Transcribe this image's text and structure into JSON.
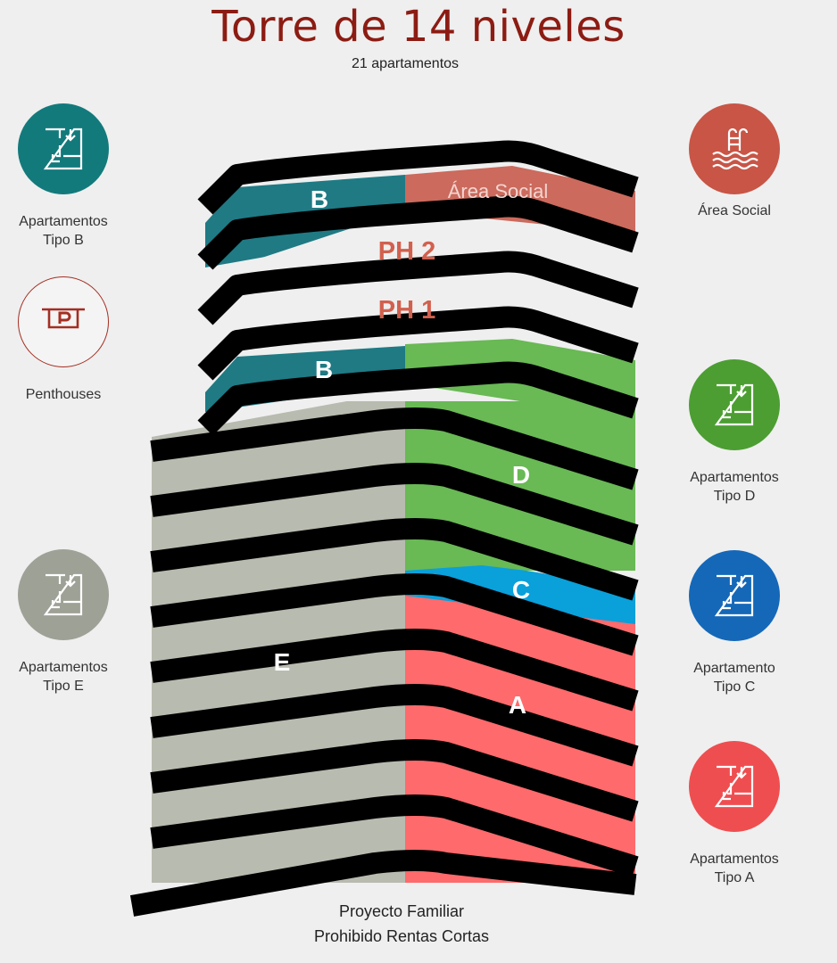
{
  "header": {
    "title": "Torre de 14 niveles",
    "subtitle": "21 apartamentos"
  },
  "legend": {
    "tipo_b": {
      "line1": "Apartamentos",
      "line2": "Tipo B",
      "color": "#137a7c",
      "icon": "floorplan-icon"
    },
    "penthouses": {
      "line1": "Penthouses",
      "color": "#a42e22",
      "icon": "parking-sign-icon"
    },
    "tipo_e": {
      "line1": "Apartamentos",
      "line2": "Tipo E",
      "color": "#9ea196",
      "icon": "floorplan-icon"
    },
    "area_social": {
      "line1": "Área Social",
      "color": "#c85546",
      "icon": "pool-icon"
    },
    "tipo_d": {
      "line1": "Apartamentos",
      "line2": "Tipo D",
      "color": "#4c9e32",
      "icon": "floorplan-icon"
    },
    "tipo_c": {
      "line1": "Apartamento",
      "line2": "Tipo C",
      "color": "#1568b8",
      "icon": "floorplan-icon"
    },
    "tipo_a": {
      "line1": "Apartamentos",
      "line2": "Tipo A",
      "color": "#ef4e50",
      "icon": "floorplan-icon"
    }
  },
  "tower": {
    "colors": {
      "b": "#1f7a84",
      "area_social": "#cb6a5d",
      "ph": "#efefef",
      "e": "#b8bbaf",
      "d": "#69b955",
      "c": "#0aa0da",
      "a": "#ff6a6c",
      "slab": "#000000",
      "ph_text": "#d2604e"
    },
    "labels": {
      "b_top": "B",
      "area_social": "Área Social",
      "ph2": "PH 2",
      "ph1": "PH 1",
      "b_lower": "B",
      "d": "D",
      "c": "C",
      "e": "E",
      "a": "A"
    }
  },
  "footer": {
    "line1": "Proyecto Familiar",
    "line2": "Prohibido Rentas Cortas"
  }
}
